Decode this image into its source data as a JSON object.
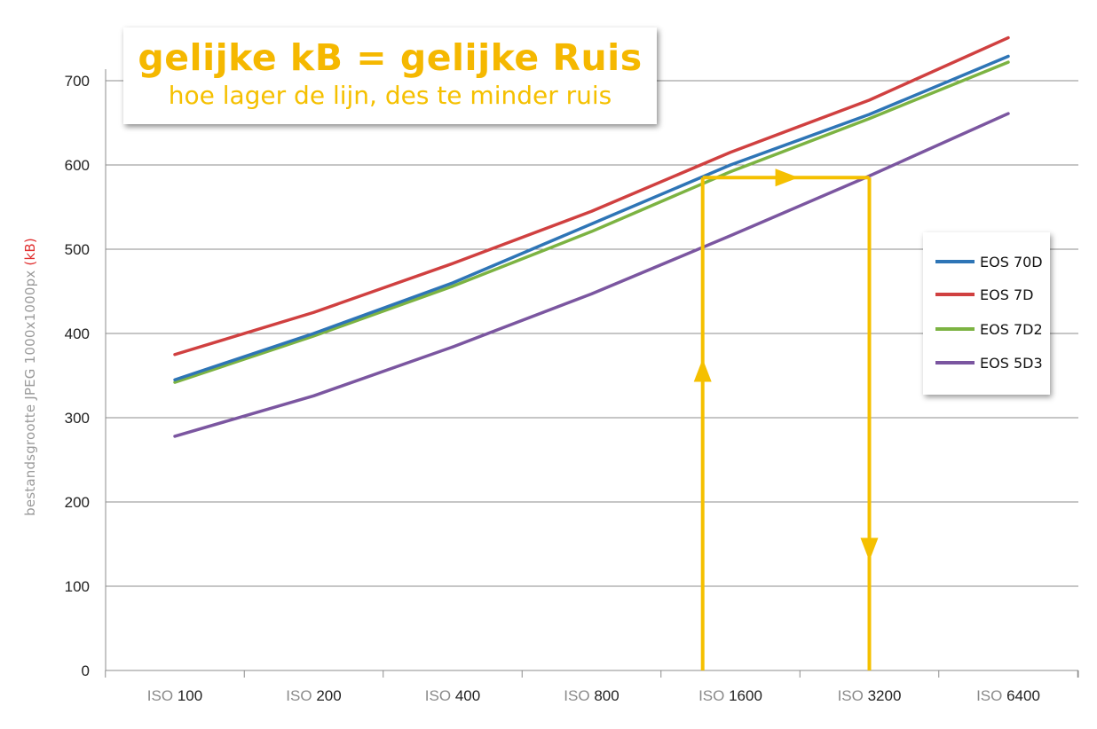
{
  "title": "gelijke kB = gelijke Ruis",
  "subtitle": "hoe lager de lijn, des te minder ruis",
  "colors": {
    "title": "#f5b800",
    "arrows": "#f5c000",
    "grid": "#8c8c8c"
  },
  "chart_data": {
    "type": "line",
    "categories": [
      "ISO 100",
      "ISO 200",
      "ISO 400",
      "ISO 800",
      "ISO 1600",
      "ISO 3200",
      "ISO 6400"
    ],
    "category_prefix": "ISO",
    "category_numbers": [
      "100",
      "200",
      "400",
      "800",
      "1600",
      "3200",
      "6400"
    ],
    "ylabel": "bestandsgrootte JPEG 1000x1000px",
    "ylabel_unit": "(kB)",
    "ylim": [
      0,
      700
    ],
    "yticks": [
      "0",
      "100",
      "200",
      "300",
      "400",
      "500",
      "600",
      "700"
    ],
    "grid": true,
    "legend_position": "right",
    "series": [
      {
        "name": "EOS 70D",
        "color": "#2e75b6",
        "values": [
          345,
          400,
          460,
          530,
          600,
          660,
          729
        ]
      },
      {
        "name": "EOS 7D",
        "color": "#d04040",
        "values": [
          375,
          425,
          483,
          545,
          615,
          677,
          751
        ]
      },
      {
        "name": "EOS 7D2",
        "color": "#7cb342",
        "values": [
          342,
          397,
          456,
          521,
          592,
          655,
          722
        ]
      },
      {
        "name": "EOS 5D3",
        "color": "#7b56a0",
        "values": [
          278,
          326,
          384,
          447,
          516,
          587,
          661
        ]
      }
    ],
    "annotation": {
      "description_level_kB": 585,
      "from_category_index": 3.8,
      "to_category_index": 5.0
    }
  }
}
